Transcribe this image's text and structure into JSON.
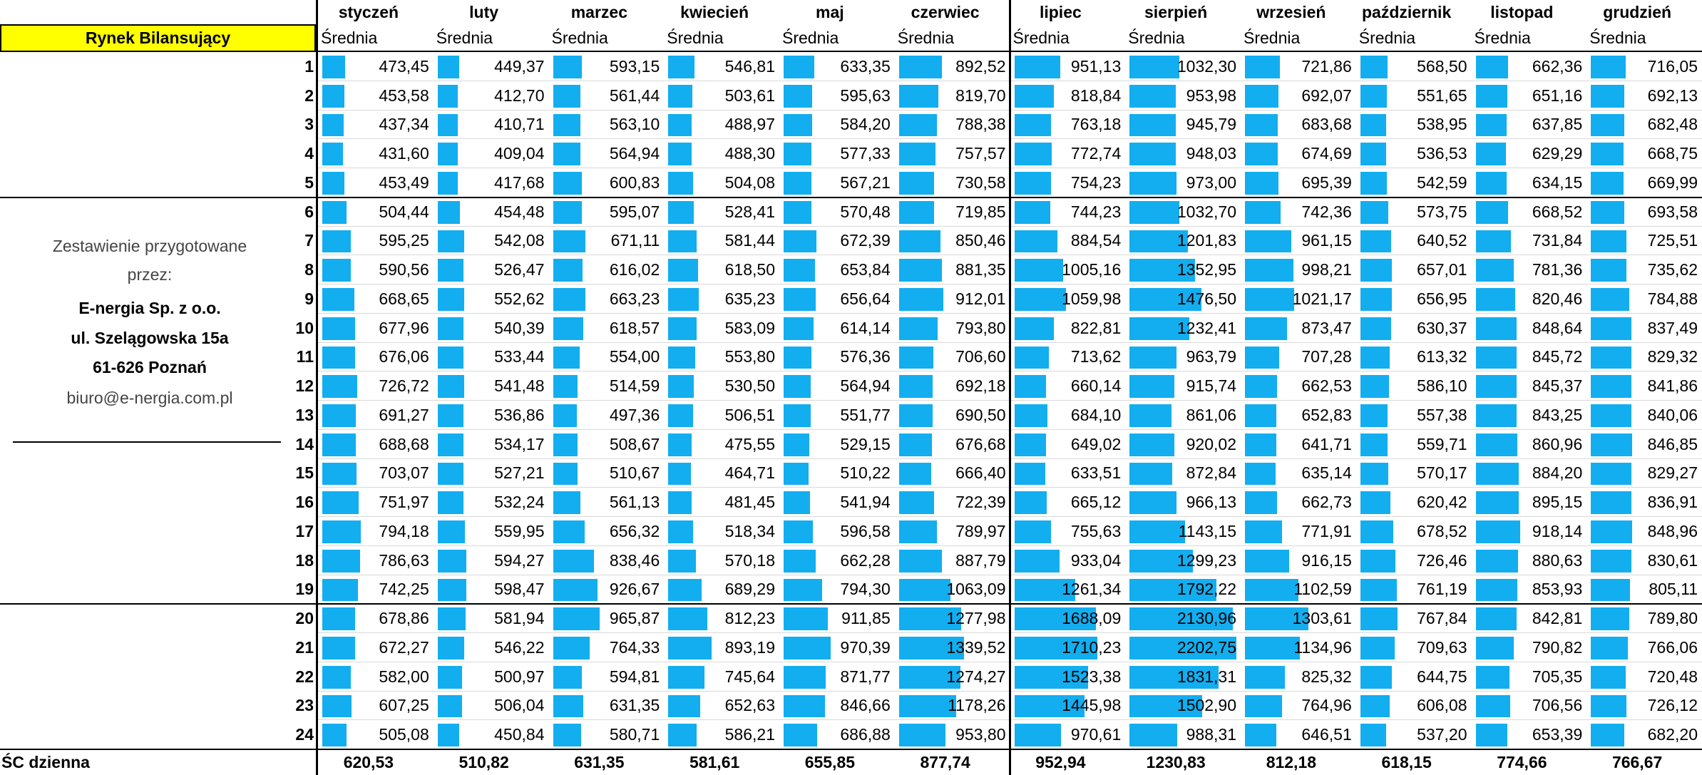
{
  "title": "Rynek Bilansujący",
  "months": [
    "styczeń",
    "luty",
    "marzec",
    "kwiecień",
    "maj",
    "czerwiec",
    "lipiec",
    "sierpień",
    "wrzesień",
    "październik",
    "listopad",
    "grudzień"
  ],
  "subheaders": [
    "Średnia",
    "Średnia",
    "Średnia",
    "Średnia",
    "Średnia",
    "Średnia",
    "Średnia",
    "Średnia",
    "Średnia",
    "Średnia",
    "Średnia",
    "Średnia"
  ],
  "info": [
    "Zestawienie przygotowane",
    "przez:",
    "E-nergia Sp. z o.o.",
    "ul. Szelągowska 15a",
    "61-626 Poznań",
    "biuro@e-nergia.com.pl"
  ],
  "rows": [
    {
      "hour": 1,
      "values": [
        "473,45",
        "449,37",
        "593,15",
        "546,81",
        "633,35",
        "892,52",
        "951,13",
        "1032,30",
        "721,86",
        "568,50",
        "662,36",
        "716,05"
      ]
    },
    {
      "hour": 2,
      "values": [
        "453,58",
        "412,70",
        "561,44",
        "503,61",
        "595,63",
        "819,70",
        "818,84",
        "953,98",
        "692,07",
        "551,65",
        "651,16",
        "692,13"
      ]
    },
    {
      "hour": 3,
      "values": [
        "437,34",
        "410,71",
        "563,10",
        "488,97",
        "584,20",
        "788,38",
        "763,18",
        "945,79",
        "683,68",
        "538,95",
        "637,85",
        "682,48"
      ]
    },
    {
      "hour": 4,
      "values": [
        "431,60",
        "409,04",
        "564,94",
        "488,30",
        "577,33",
        "757,57",
        "772,74",
        "948,03",
        "674,69",
        "536,53",
        "629,29",
        "668,75"
      ]
    },
    {
      "hour": 5,
      "values": [
        "453,49",
        "417,68",
        "600,83",
        "504,08",
        "567,21",
        "730,58",
        "754,23",
        "973,00",
        "695,39",
        "542,59",
        "634,15",
        "669,99"
      ]
    },
    {
      "hour": 6,
      "values": [
        "504,44",
        "454,48",
        "595,07",
        "528,41",
        "570,48",
        "719,85",
        "744,23",
        "1032,70",
        "742,36",
        "573,75",
        "668,52",
        "693,58"
      ]
    },
    {
      "hour": 7,
      "values": [
        "595,25",
        "542,08",
        "671,11",
        "581,44",
        "672,39",
        "850,46",
        "884,54",
        "1201,83",
        "961,15",
        "640,52",
        "731,84",
        "725,51"
      ]
    },
    {
      "hour": 8,
      "values": [
        "590,56",
        "526,47",
        "616,02",
        "618,50",
        "653,84",
        "881,35",
        "1005,16",
        "1352,95",
        "998,21",
        "657,01",
        "781,36",
        "735,62"
      ]
    },
    {
      "hour": 9,
      "values": [
        "668,65",
        "552,62",
        "663,23",
        "635,23",
        "656,64",
        "912,01",
        "1059,98",
        "1476,50",
        "1021,17",
        "656,95",
        "820,46",
        "784,88"
      ]
    },
    {
      "hour": 10,
      "values": [
        "677,96",
        "540,39",
        "618,57",
        "583,09",
        "614,14",
        "793,80",
        "822,81",
        "1232,41",
        "873,47",
        "630,37",
        "848,64",
        "837,49"
      ]
    },
    {
      "hour": 11,
      "values": [
        "676,06",
        "533,44",
        "554,00",
        "553,80",
        "576,36",
        "706,60",
        "713,62",
        "963,79",
        "707,28",
        "613,32",
        "845,72",
        "829,32"
      ]
    },
    {
      "hour": 12,
      "values": [
        "726,72",
        "541,48",
        "514,59",
        "530,50",
        "564,94",
        "692,18",
        "660,14",
        "915,74",
        "662,53",
        "586,10",
        "845,37",
        "841,86"
      ]
    },
    {
      "hour": 13,
      "values": [
        "691,27",
        "536,86",
        "497,36",
        "506,51",
        "551,77",
        "690,50",
        "684,10",
        "861,06",
        "652,83",
        "557,38",
        "843,25",
        "840,06"
      ]
    },
    {
      "hour": 14,
      "values": [
        "688,68",
        "534,17",
        "508,67",
        "475,55",
        "529,15",
        "676,68",
        "649,02",
        "920,02",
        "641,71",
        "559,71",
        "860,96",
        "846,85"
      ]
    },
    {
      "hour": 15,
      "values": [
        "703,07",
        "527,21",
        "510,67",
        "464,71",
        "510,22",
        "666,40",
        "633,51",
        "872,84",
        "635,14",
        "570,17",
        "884,20",
        "829,27"
      ]
    },
    {
      "hour": 16,
      "values": [
        "751,97",
        "532,24",
        "561,13",
        "481,45",
        "541,94",
        "722,39",
        "665,12",
        "966,13",
        "662,73",
        "620,42",
        "895,15",
        "836,91"
      ]
    },
    {
      "hour": 17,
      "values": [
        "794,18",
        "559,95",
        "656,32",
        "518,34",
        "596,58",
        "789,97",
        "755,63",
        "1143,15",
        "771,91",
        "678,52",
        "918,14",
        "848,96"
      ]
    },
    {
      "hour": 18,
      "values": [
        "786,63",
        "594,27",
        "838,46",
        "570,18",
        "662,28",
        "887,79",
        "933,04",
        "1299,23",
        "916,15",
        "726,46",
        "880,63",
        "830,61"
      ]
    },
    {
      "hour": 19,
      "values": [
        "742,25",
        "598,47",
        "926,67",
        "689,29",
        "794,30",
        "1063,09",
        "1261,34",
        "1792,22",
        "1102,59",
        "761,19",
        "853,93",
        "805,11"
      ]
    },
    {
      "hour": 20,
      "values": [
        "678,86",
        "581,94",
        "965,87",
        "812,23",
        "911,85",
        "1277,98",
        "1688,09",
        "2130,96",
        "1303,61",
        "767,84",
        "842,81",
        "789,80"
      ]
    },
    {
      "hour": 21,
      "values": [
        "672,27",
        "546,22",
        "764,33",
        "893,19",
        "970,39",
        "1339,52",
        "1710,23",
        "2202,75",
        "1134,96",
        "709,63",
        "790,82",
        "766,06"
      ]
    },
    {
      "hour": 22,
      "values": [
        "582,00",
        "500,97",
        "594,81",
        "745,64",
        "871,77",
        "1274,27",
        "1523,38",
        "1831,31",
        "825,32",
        "644,75",
        "705,35",
        "720,48"
      ]
    },
    {
      "hour": 23,
      "values": [
        "607,25",
        "506,04",
        "631,35",
        "652,63",
        "846,66",
        "1178,26",
        "1445,98",
        "1502,90",
        "764,96",
        "606,08",
        "706,56",
        "726,12"
      ]
    },
    {
      "hour": 24,
      "values": [
        "505,08",
        "450,84",
        "580,71",
        "586,21",
        "686,88",
        "953,80",
        "970,61",
        "988,31",
        "646,51",
        "537,20",
        "653,39",
        "682,20"
      ]
    }
  ],
  "summary": {
    "label": "ŚC dzienna",
    "values": [
      "620,53",
      "510,82",
      "631,35",
      "581,61",
      "655,85",
      "877,74",
      "952,94",
      "1230,83",
      "812,18",
      "618,15",
      "774,66",
      "766,67"
    ]
  }
}
